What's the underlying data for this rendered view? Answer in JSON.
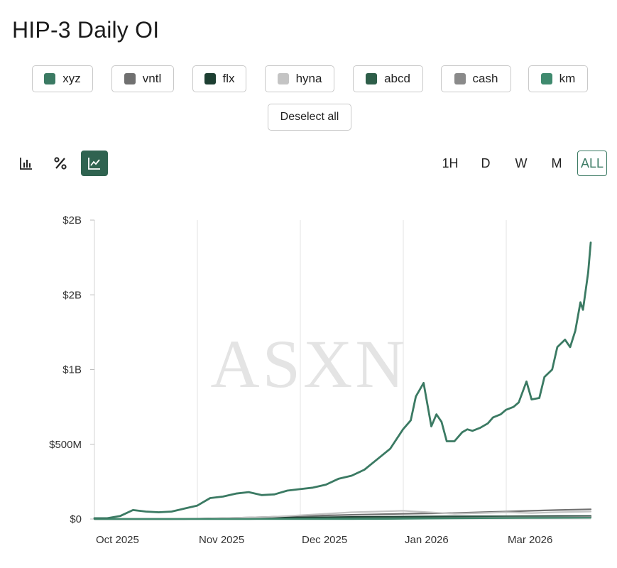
{
  "title": "HIP-3 Daily OI",
  "legend": [
    {
      "label": "xyz",
      "color": "#3b7a63"
    },
    {
      "label": "vntl",
      "color": "#707070"
    },
    {
      "label": "flx",
      "color": "#1d3f32"
    },
    {
      "label": "hyna",
      "color": "#c4c4c4"
    },
    {
      "label": "abcd",
      "color": "#2e5e49"
    },
    {
      "label": "cash",
      "color": "#8a8a8a"
    },
    {
      "label": "km",
      "color": "#3f8a6e"
    }
  ],
  "deselect_label": "Deselect all",
  "toolbar": {
    "icons": [
      "bar-chart-icon",
      "percent-icon",
      "line-chart-icon"
    ],
    "ranges": [
      "1H",
      "D",
      "W",
      "M",
      "ALL"
    ],
    "active_range": "ALL"
  },
  "watermark": "ASXN",
  "chart_data": {
    "type": "line",
    "title": "HIP-3 Daily OI",
    "xlabel": "",
    "ylabel": "",
    "x_ticks": [
      "Oct 2025",
      "Nov 2025",
      "Dec 2025",
      "Jan 2026",
      "Mar 2026"
    ],
    "y_ticks": [
      {
        "value": 0,
        "label": "$0"
      },
      {
        "value": 500,
        "label": "$500M"
      },
      {
        "value": 1000,
        "label": "$1B"
      },
      {
        "value": 1500,
        "label": "$2B"
      },
      {
        "value": 2000,
        "label": "$2B"
      }
    ],
    "x_range_days": [
      0,
      193
    ],
    "ylim": [
      0,
      2000
    ],
    "unit": "USD millions",
    "series": [
      {
        "name": "xyz",
        "color": "#3b7a63",
        "width": 2.8,
        "x": [
          0,
          5,
          10,
          15,
          20,
          25,
          30,
          35,
          40,
          45,
          50,
          55,
          60,
          65,
          70,
          75,
          80,
          85,
          90,
          95,
          100,
          105,
          110,
          115,
          120,
          123,
          125,
          128,
          131,
          133,
          135,
          137,
          140,
          143,
          145,
          147,
          150,
          153,
          155,
          158,
          160,
          163,
          165,
          168,
          170,
          173,
          175,
          178,
          180,
          183,
          185,
          187,
          189,
          190,
          192,
          193
        ],
        "y": [
          5,
          5,
          20,
          60,
          50,
          45,
          50,
          70,
          90,
          140,
          150,
          170,
          180,
          160,
          165,
          190,
          200,
          210,
          230,
          270,
          290,
          330,
          400,
          470,
          600,
          660,
          820,
          910,
          620,
          700,
          650,
          520,
          520,
          580,
          600,
          590,
          610,
          640,
          680,
          700,
          730,
          750,
          780,
          920,
          800,
          810,
          950,
          1000,
          1150,
          1200,
          1150,
          1260,
          1450,
          1400,
          1650,
          1850
        ]
      },
      {
        "name": "vntl",
        "color": "#707070",
        "width": 2.2,
        "x": [
          0,
          30,
          40,
          60,
          80,
          100,
          120,
          140,
          150,
          160,
          170,
          180,
          193
        ],
        "y": [
          0,
          0,
          2,
          10,
          20,
          28,
          35,
          40,
          45,
          50,
          55,
          60,
          65
        ]
      },
      {
        "name": "flx",
        "color": "#1d3f32",
        "width": 2.2,
        "x": [
          0,
          35,
          45,
          60,
          80,
          100,
          120,
          140,
          160,
          180,
          193
        ],
        "y": [
          0,
          0,
          3,
          6,
          10,
          14,
          16,
          18,
          18,
          20,
          20
        ]
      },
      {
        "name": "hyna",
        "color": "#c4c4c4",
        "width": 2.2,
        "x": [
          0,
          40,
          50,
          60,
          70,
          80,
          90,
          100,
          110,
          120,
          130,
          140,
          150,
          160,
          170,
          180,
          193
        ],
        "y": [
          0,
          0,
          5,
          10,
          15,
          25,
          35,
          45,
          50,
          55,
          45,
          35,
          40,
          45,
          40,
          45,
          50
        ]
      },
      {
        "name": "abcd",
        "color": "#2e5e49",
        "width": 2.2,
        "x": [
          0,
          60,
          80,
          100,
          120,
          140,
          160,
          180,
          193
        ],
        "y": [
          0,
          0,
          4,
          8,
          10,
          12,
          14,
          14,
          15
        ]
      },
      {
        "name": "cash",
        "color": "#8a8a8a",
        "width": 2.2,
        "x": [
          0,
          100,
          120,
          140,
          160,
          180,
          193
        ],
        "y": [
          0,
          0,
          3,
          6,
          10,
          12,
          14
        ]
      },
      {
        "name": "km",
        "color": "#3f8a6e",
        "width": 2.2,
        "x": [
          0,
          110,
          130,
          150,
          170,
          193
        ],
        "y": [
          0,
          0,
          3,
          5,
          7,
          8
        ]
      }
    ]
  }
}
